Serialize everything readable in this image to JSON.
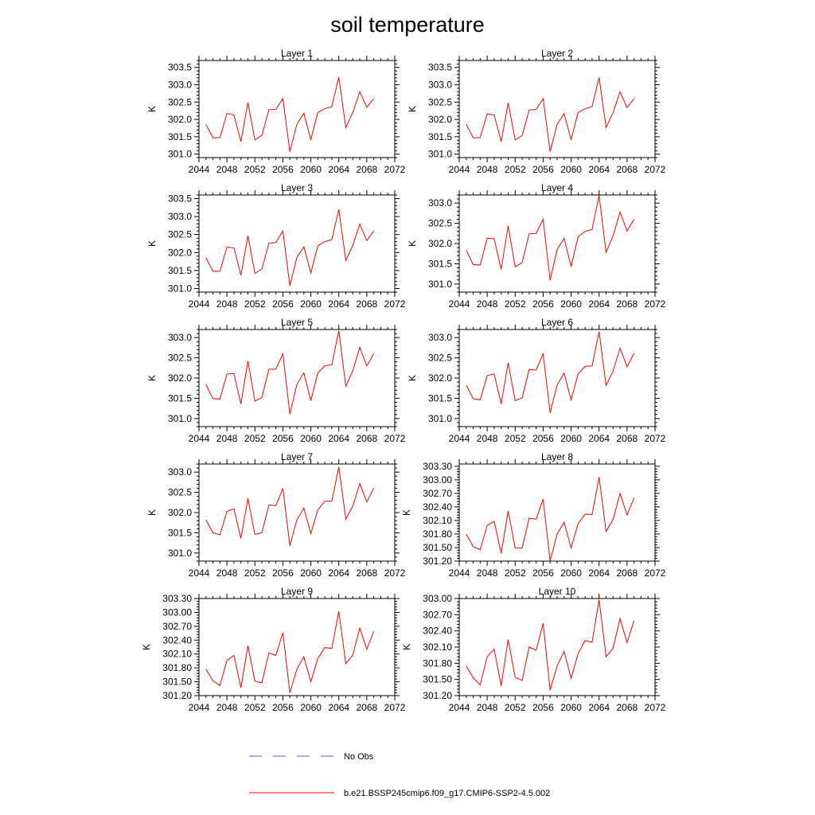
{
  "chart_data": {
    "type": "line",
    "title": "soil temperature",
    "xlabel": "",
    "ylabel": "K",
    "x": [
      2045,
      2046,
      2047,
      2048,
      2049,
      2050,
      2051,
      2052,
      2053,
      2054,
      2055,
      2056,
      2057,
      2058,
      2059,
      2060,
      2061,
      2062,
      2063,
      2064,
      2065,
      2066,
      2067,
      2068,
      2069
    ],
    "xlim": [
      2044,
      2072
    ],
    "xticks": [
      2044,
      2048,
      2052,
      2056,
      2060,
      2064,
      2068,
      2072
    ],
    "legend": [
      {
        "label": "No Obs",
        "color": "#5b5bd6",
        "style": "dashed"
      },
      {
        "label": "b.e21.BSSP245cmip6.f09_g17.CMIP6-SSP2-4.5.002",
        "color": "#ff0000",
        "style": "solid"
      }
    ],
    "panels": [
      {
        "title": "Layer 1",
        "ylim": [
          300.9,
          303.7
        ],
        "yticks": [
          301.0,
          301.5,
          302.0,
          302.5,
          303.0,
          303.5
        ],
        "ytick_decimals": 1,
        "values": [
          301.86,
          301.47,
          301.48,
          302.17,
          302.13,
          301.36,
          302.49,
          301.41,
          301.54,
          302.28,
          302.29,
          302.6,
          301.07,
          301.86,
          302.18,
          301.42,
          302.2,
          302.31,
          302.37,
          303.22,
          301.77,
          302.2,
          302.8,
          302.35,
          302.6
        ]
      },
      {
        "title": "Layer 2",
        "ylim": [
          300.9,
          303.7
        ],
        "yticks": [
          301.0,
          301.5,
          302.0,
          302.5,
          303.0,
          303.5
        ],
        "ytick_decimals": 1,
        "values": [
          301.86,
          301.47,
          301.48,
          302.16,
          302.13,
          301.36,
          302.48,
          301.41,
          301.54,
          302.27,
          302.29,
          302.6,
          301.07,
          301.86,
          302.17,
          301.42,
          302.2,
          302.31,
          302.37,
          303.21,
          301.77,
          302.2,
          302.8,
          302.34,
          302.6
        ]
      },
      {
        "title": "Layer 3",
        "ylim": [
          300.9,
          303.6
        ],
        "yticks": [
          301.0,
          301.5,
          302.0,
          302.5,
          303.0,
          303.5
        ],
        "ytick_decimals": 1,
        "values": [
          301.86,
          301.48,
          301.48,
          302.15,
          302.13,
          301.37,
          302.47,
          301.42,
          301.54,
          302.26,
          302.28,
          302.6,
          301.08,
          301.86,
          302.16,
          301.43,
          302.19,
          302.3,
          302.36,
          303.2,
          301.78,
          302.2,
          302.79,
          302.33,
          302.6
        ]
      },
      {
        "title": "Layer 4",
        "ylim": [
          300.8,
          303.2
        ],
        "yticks": [
          301.0,
          301.5,
          302.0,
          302.5,
          303.0
        ],
        "ytick_decimals": 1,
        "values": [
          301.84,
          301.48,
          301.47,
          302.13,
          302.12,
          301.36,
          302.44,
          301.42,
          301.53,
          302.24,
          302.25,
          302.6,
          301.09,
          301.85,
          302.13,
          301.43,
          302.17,
          302.3,
          302.35,
          303.19,
          301.78,
          302.19,
          302.78,
          302.31,
          302.6
        ]
      },
      {
        "title": "Layer 5",
        "ylim": [
          300.8,
          303.2
        ],
        "yticks": [
          301.0,
          301.5,
          302.0,
          302.5,
          303.0
        ],
        "ytick_decimals": 1,
        "values": [
          301.84,
          301.49,
          301.48,
          302.1,
          302.11,
          301.36,
          302.42,
          301.43,
          301.52,
          302.22,
          302.22,
          302.6,
          301.11,
          301.84,
          302.13,
          301.44,
          302.13,
          302.3,
          302.33,
          303.17,
          301.8,
          302.18,
          302.76,
          302.3,
          302.6
        ]
      },
      {
        "title": "Layer 6",
        "ylim": [
          300.8,
          303.2
        ],
        "yticks": [
          301.0,
          301.5,
          302.0,
          302.5,
          303.0
        ],
        "ytick_decimals": 1,
        "values": [
          301.83,
          301.49,
          301.46,
          302.06,
          302.1,
          301.36,
          302.38,
          301.44,
          301.51,
          302.21,
          302.2,
          302.6,
          301.14,
          301.83,
          302.12,
          301.46,
          302.1,
          302.29,
          302.3,
          303.15,
          301.82,
          302.17,
          302.74,
          302.28,
          302.61
        ]
      },
      {
        "title": "Layer 7",
        "ylim": [
          300.8,
          303.2
        ],
        "yticks": [
          301.0,
          301.5,
          302.0,
          302.5,
          303.0
        ],
        "ytick_decimals": 1,
        "values": [
          301.82,
          301.5,
          301.45,
          302.03,
          302.09,
          301.36,
          302.35,
          301.46,
          301.5,
          302.19,
          302.17,
          302.6,
          301.18,
          301.82,
          302.11,
          301.48,
          302.07,
          302.28,
          302.28,
          303.13,
          301.84,
          302.16,
          302.72,
          302.26,
          302.61
        ]
      },
      {
        "title": "Layer 8",
        "ylim": [
          301.2,
          303.35
        ],
        "yticks": [
          301.2,
          301.5,
          301.8,
          302.1,
          302.4,
          302.7,
          303.0,
          303.3
        ],
        "ytick_decimals": 2,
        "values": [
          301.8,
          301.52,
          301.45,
          301.99,
          302.08,
          301.37,
          302.31,
          301.49,
          301.49,
          302.15,
          302.13,
          302.57,
          301.2,
          301.8,
          302.06,
          301.49,
          302.03,
          302.24,
          302.23,
          303.06,
          301.86,
          302.12,
          302.7,
          302.22,
          302.6
        ]
      },
      {
        "title": "Layer 9",
        "ylim": [
          301.2,
          303.3
        ],
        "yticks": [
          301.2,
          301.5,
          301.8,
          302.1,
          302.4,
          302.7,
          303.0,
          303.3
        ],
        "ytick_decimals": 2,
        "values": [
          301.77,
          301.52,
          301.42,
          301.96,
          302.07,
          301.37,
          302.28,
          301.51,
          301.48,
          302.12,
          302.07,
          302.56,
          301.26,
          301.77,
          302.04,
          301.5,
          302.0,
          302.24,
          302.22,
          303.02,
          301.89,
          302.08,
          302.66,
          302.2,
          302.59
        ]
      },
      {
        "title": "Layer 10",
        "ylim": [
          301.2,
          303.0
        ],
        "yticks": [
          301.2,
          301.5,
          301.8,
          302.1,
          302.4,
          302.7,
          303.0
        ],
        "ytick_decimals": 2,
        "values": [
          301.75,
          301.53,
          301.4,
          301.92,
          302.06,
          301.38,
          302.24,
          301.54,
          301.48,
          302.1,
          302.04,
          302.54,
          301.3,
          301.75,
          302.02,
          301.52,
          301.98,
          302.22,
          302.19,
          302.98,
          301.92,
          302.08,
          302.63,
          302.18,
          302.59
        ]
      }
    ]
  }
}
